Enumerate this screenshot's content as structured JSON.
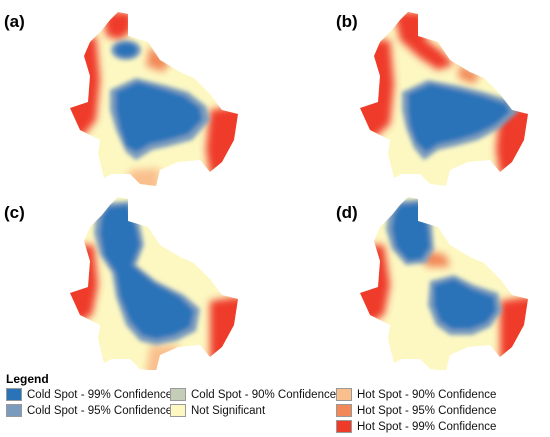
{
  "panels": [
    {
      "label": "(a)",
      "variant": "a"
    },
    {
      "label": "(b)",
      "variant": "b"
    },
    {
      "label": "(c)",
      "variant": "c"
    },
    {
      "label": "(d)",
      "variant": "d"
    }
  ],
  "legend": {
    "title": "Legend",
    "items": [
      {
        "label": "Cold Spot - 99% Confidence",
        "color": "#2a73b8"
      },
      {
        "label": "Cold Spot - 95% Confidence",
        "color": "#7a9bbd"
      },
      {
        "label": "Cold Spot - 90% Confidence",
        "color": "#c4cdb7"
      },
      {
        "label": "Not Significant",
        "color": "#fdf8c2"
      },
      {
        "label": "Hot Spot - 90% Confidence",
        "color": "#f9c08e"
      },
      {
        "label": "Hot Spot - 95% Confidence",
        "color": "#f28758"
      },
      {
        "label": "Hot Spot - 99% Confidence",
        "color": "#ef3a2a"
      }
    ]
  }
}
